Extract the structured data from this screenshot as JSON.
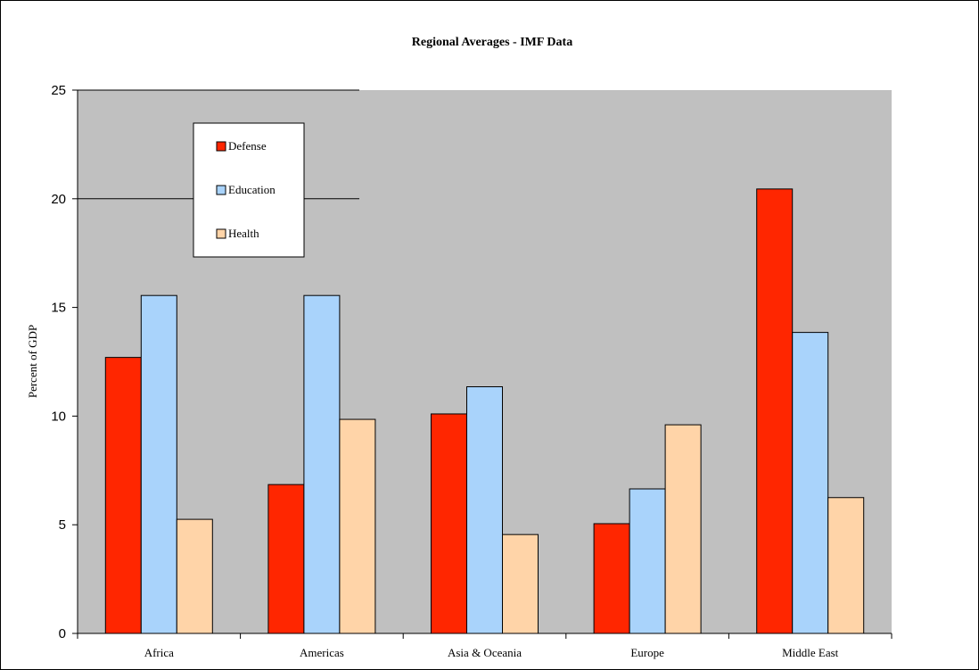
{
  "chart_data": {
    "type": "bar",
    "title": "Regional Averages - IMF Data",
    "xlabel": "",
    "ylabel": "Percent of GDP",
    "ylim": [
      0,
      25
    ],
    "yticks": [
      0,
      5,
      10,
      15,
      20,
      25
    ],
    "categories": [
      "Africa",
      "Americas",
      "Asia & Oceania",
      "Europe",
      "Middle East"
    ],
    "series": [
      {
        "name": "Defense",
        "color": "#ff2600",
        "values": [
          12.7,
          6.85,
          10.1,
          5.05,
          20.45
        ]
      },
      {
        "name": "Education",
        "color": "#a9d3fb",
        "values": [
          15.55,
          15.55,
          11.35,
          6.65,
          13.85
        ]
      },
      {
        "name": "Health",
        "color": "#ffd4a8",
        "values": [
          5.25,
          9.85,
          4.55,
          9.6,
          6.25
        ]
      }
    ],
    "plot_background": "#c0c0c0",
    "gridlines": "partial",
    "legend_position": "top-left"
  }
}
